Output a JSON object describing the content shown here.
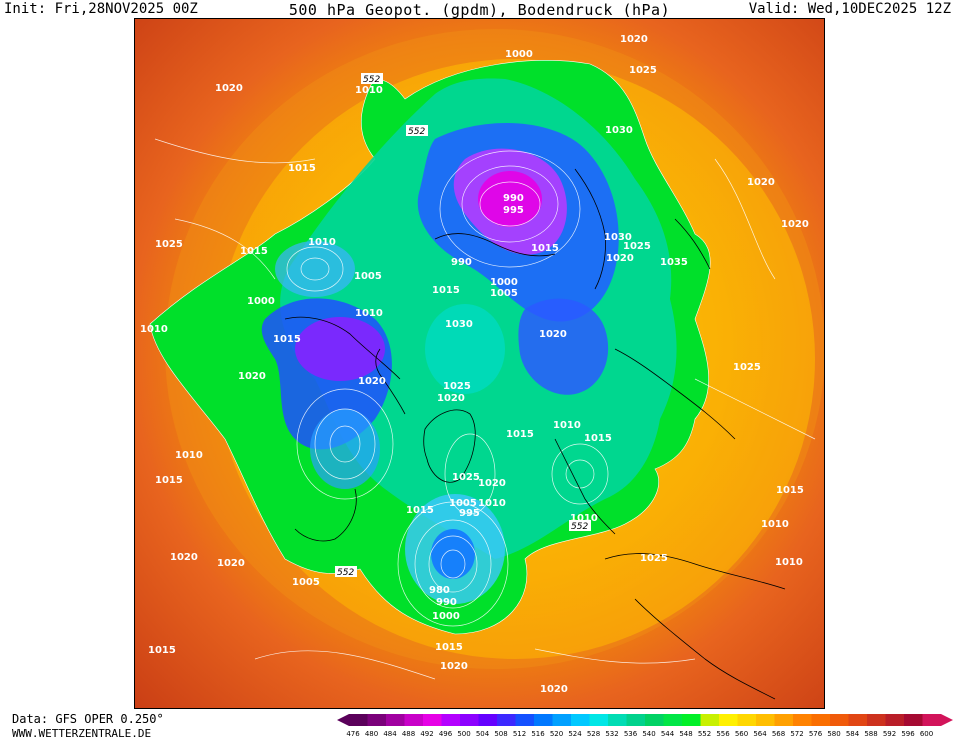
{
  "header": {
    "init": "Init: Fri,28NOV2025 00Z",
    "title": "500 hPa Geopot. (gpdm), Bodendruck (hPa)",
    "valid": "Valid: Wed,10DEC2025 12Z"
  },
  "footer": {
    "data_source": "Data: GFS OPER 0.250°",
    "website": "WWW.WETTERZENTRALE.DE"
  },
  "colorbar": {
    "ticks": [
      "476",
      "480",
      "484",
      "488",
      "492",
      "496",
      "500",
      "504",
      "508",
      "512",
      "516",
      "520",
      "524",
      "528",
      "532",
      "536",
      "540",
      "544",
      "548",
      "552",
      "556",
      "560",
      "564",
      "568",
      "572",
      "576",
      "580",
      "584",
      "588",
      "592",
      "596",
      "600"
    ],
    "colors": [
      "#5a005a",
      "#7a007a",
      "#a000a0",
      "#c800c8",
      "#e600e6",
      "#b400ff",
      "#8c00ff",
      "#6400ff",
      "#3c28ff",
      "#1450ff",
      "#0078ff",
      "#00a0ff",
      "#00c8ff",
      "#00e6e6",
      "#00dcb4",
      "#00d28c",
      "#00d264",
      "#00e646",
      "#00f028",
      "#c8f000",
      "#fff000",
      "#ffd700",
      "#ffbe00",
      "#ffa000",
      "#ff8200",
      "#fa6e00",
      "#f05a0a",
      "#e14614",
      "#cd321e",
      "#b91e28",
      "#a50a32",
      "#d2145a"
    ]
  },
  "map": {
    "geopotential_labels": [
      "552",
      "552",
      "552",
      "552"
    ],
    "pressure_labels": [
      "1020",
      "1000",
      "1020",
      "1025",
      "1010",
      "1030",
      "1015",
      "1020",
      "1020",
      "990",
      "995",
      "1025",
      "1010",
      "1015",
      "1030",
      "1025",
      "1015",
      "1005",
      "1000",
      "990",
      "1020",
      "1035",
      "1000",
      "1010",
      "1015",
      "1005",
      "1030",
      "1010",
      "1020",
      "1015",
      "1025",
      "1020",
      "1020",
      "1010",
      "1025",
      "1020",
      "1015",
      "1015",
      "1010",
      "1025",
      "1015",
      "1020",
      "1005",
      "1015",
      "1010",
      "995",
      "1010",
      "1015",
      "1010",
      "1020",
      "1025",
      "1020",
      "1010",
      "1005",
      "980",
      "990",
      "1000",
      "1015",
      "1020",
      "1020",
      "1015"
    ]
  }
}
